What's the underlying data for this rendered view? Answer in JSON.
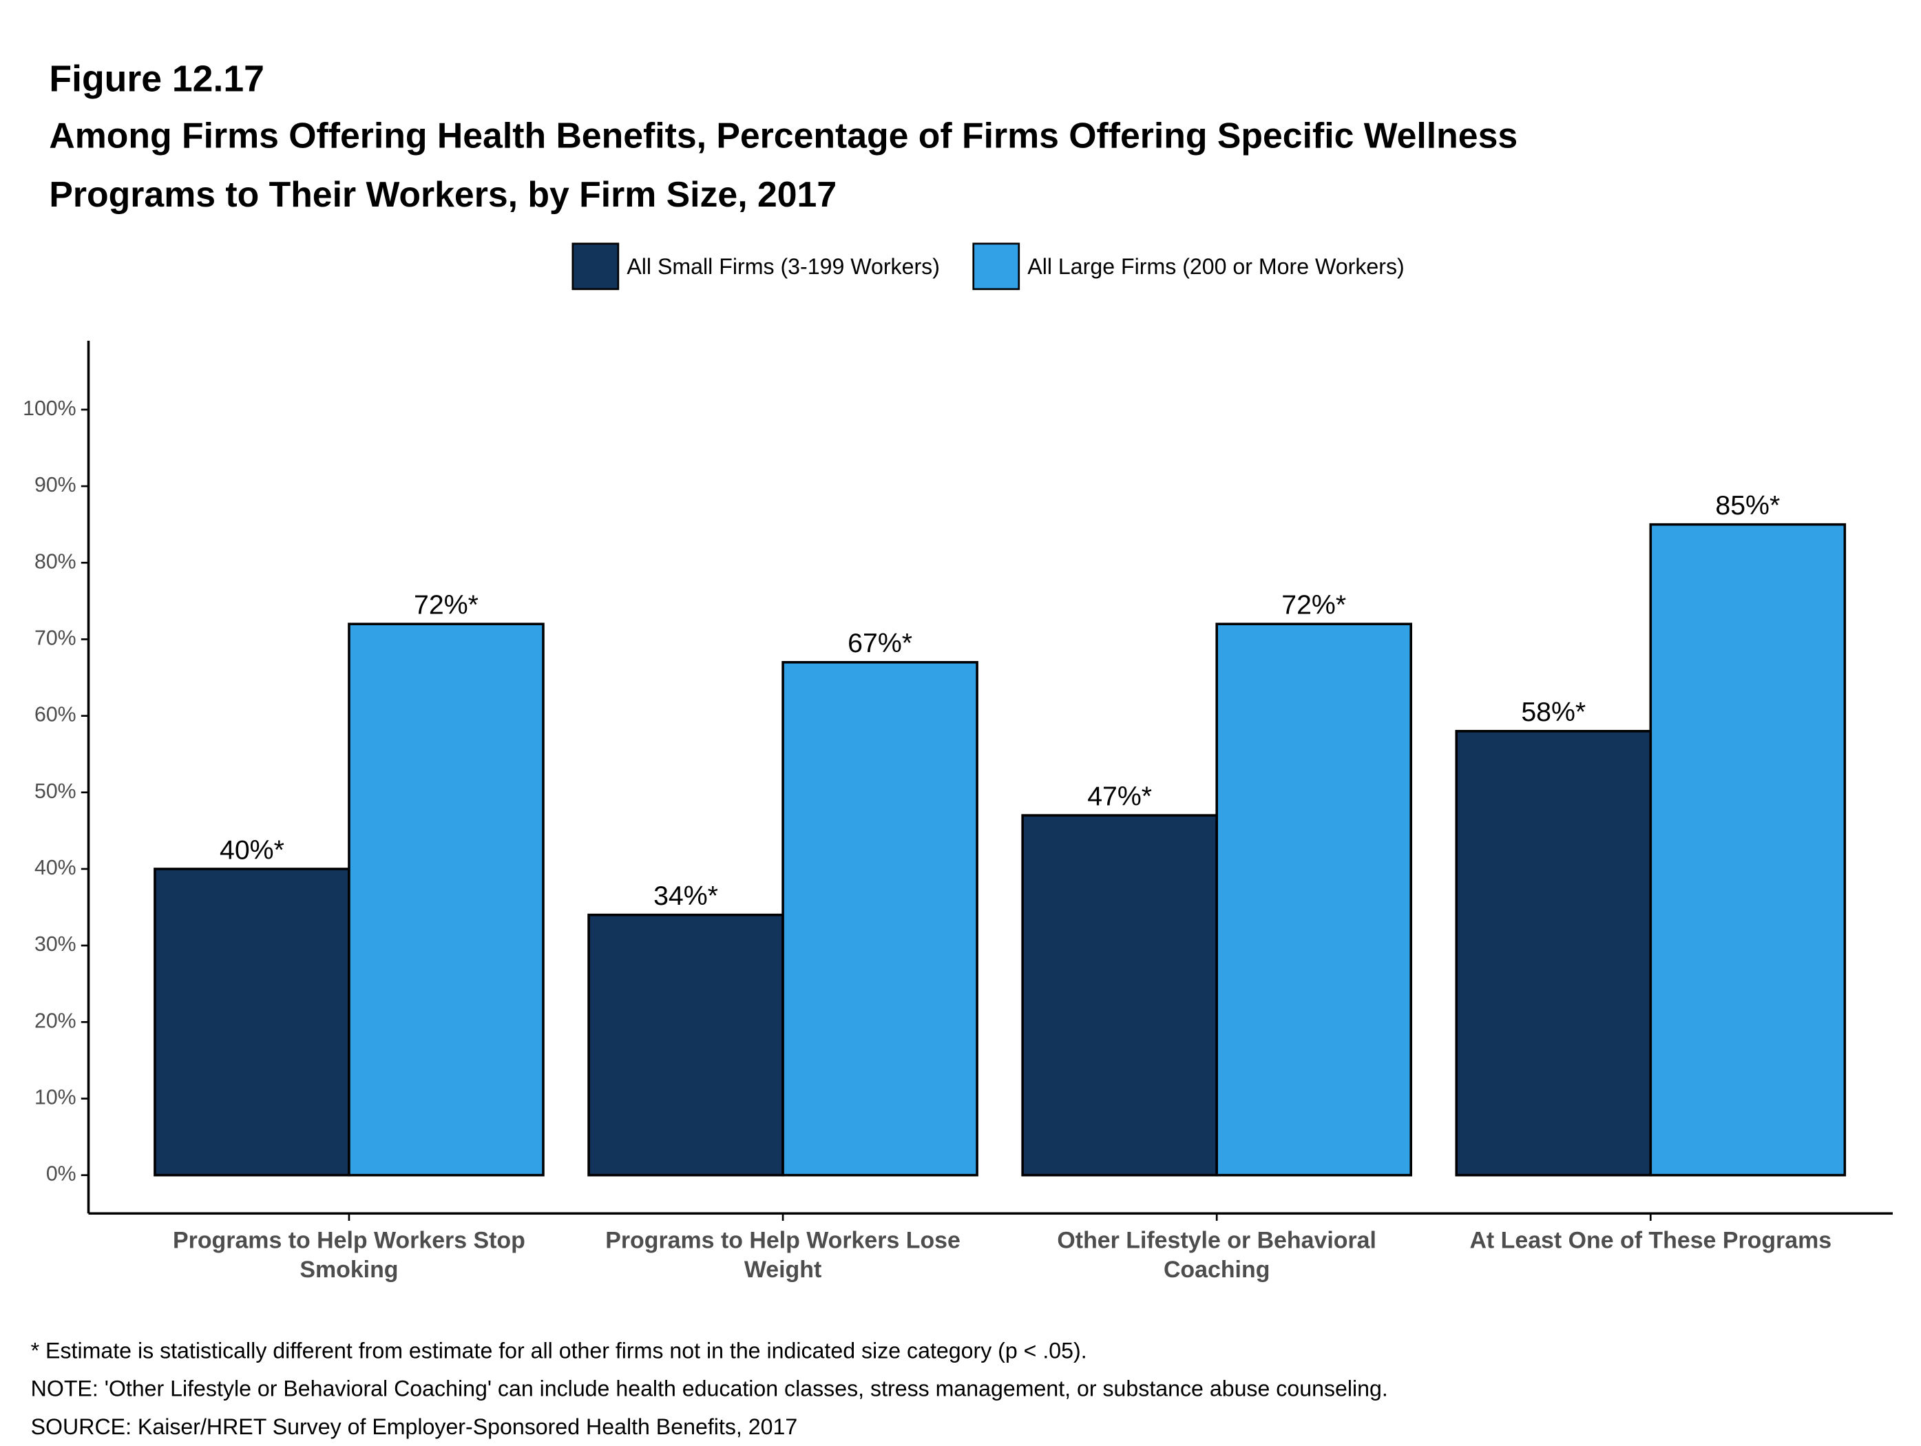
{
  "chart_data": {
    "type": "bar",
    "figure": "Figure 12.17",
    "title": "Among Firms Offering Health Benefits, Percentage of Firms Offering Specific Wellness Programs to Their Workers, by Firm Size, 2017",
    "categories": [
      "Programs to Help Workers Stop Smoking",
      "Programs to Help Workers Lose Weight",
      "Other Lifestyle or Behavioral Coaching",
      "At Least One of These Programs"
    ],
    "series": [
      {
        "name": "All Small Firms (3-199 Workers)",
        "color": "#13345a",
        "values": [
          40,
          34,
          47,
          58
        ],
        "value_labels": [
          "40%*",
          "34%*",
          "47%*",
          "58%*"
        ]
      },
      {
        "name": "All Large Firms (200 or More Workers)",
        "color": "#33a1e6",
        "values": [
          72,
          67,
          72,
          85
        ],
        "value_labels": [
          "72%*",
          "67%*",
          "72%*",
          "85%*"
        ]
      }
    ],
    "ylim": [
      -5,
      109
    ],
    "yticks": [
      {
        "value": 0,
        "label": "0%"
      },
      {
        "value": 10,
        "label": "10%"
      },
      {
        "value": 20,
        "label": "20%"
      },
      {
        "value": 30,
        "label": "30%"
      },
      {
        "value": 40,
        "label": "40%"
      },
      {
        "value": 50,
        "label": "50%"
      },
      {
        "value": 60,
        "label": "60%"
      },
      {
        "value": 70,
        "label": "70%"
      },
      {
        "value": 80,
        "label": "80%"
      },
      {
        "value": 90,
        "label": "90%"
      },
      {
        "value": 100,
        "label": "100%"
      }
    ],
    "grid": false,
    "legend": "top",
    "notes": [
      "* Estimate is statistically different from estimate for all other firms not in the indicated size category (p < .05).",
      "NOTE: 'Other Lifestyle or Behavioral Coaching' can include health education classes, stress management, or substance abuse counseling.",
      "SOURCE: Kaiser/HRET Survey of Employer-Sponsored Health Benefits, 2017"
    ]
  }
}
